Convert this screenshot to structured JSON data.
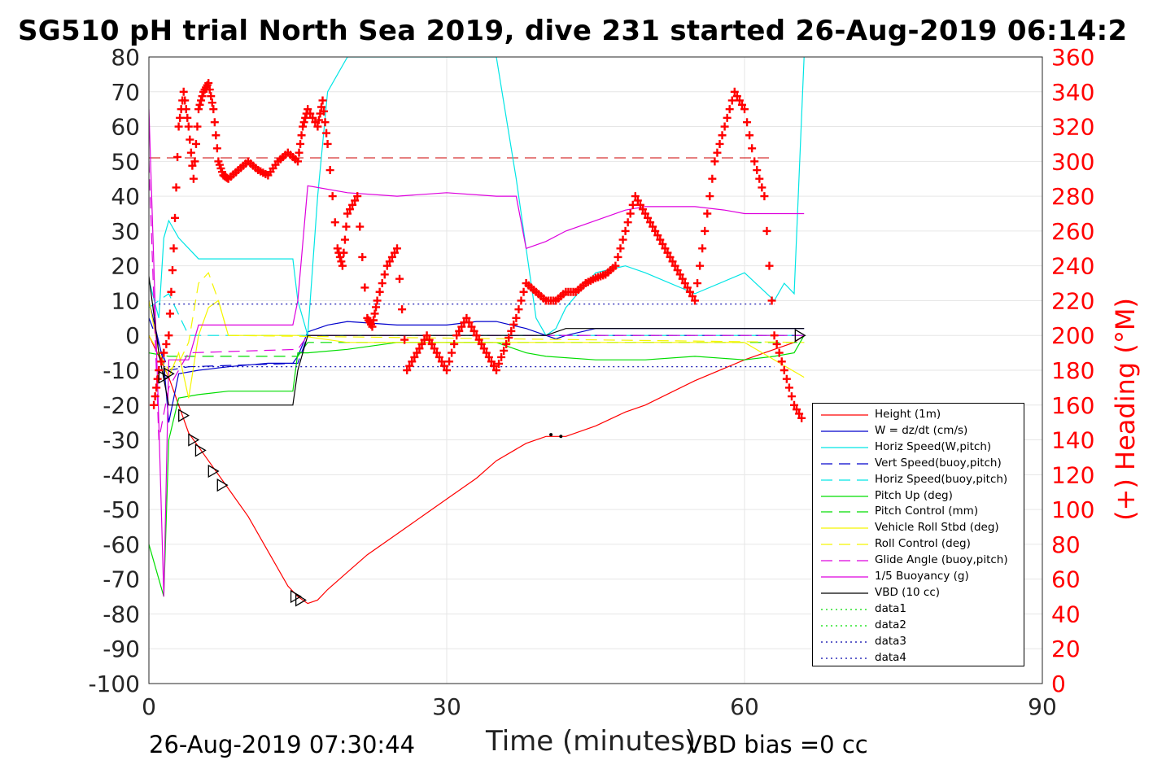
{
  "title": "SG510 pH trial North Sea 2019, dive 231 started 26-Aug-2019 06:14:2",
  "footer_left": "26-Aug-2019 07:30:44",
  "footer_right": "VBD bias =0 cc",
  "chart_data": {
    "type": "line",
    "xlabel": "Time (minutes)",
    "ylabel": "",
    "y2label": "(+) Heading (°M)",
    "xlim": [
      0,
      90
    ],
    "ylim": [
      -100,
      80
    ],
    "y2lim": [
      0,
      360
    ],
    "xticks": [
      "0",
      "30",
      "60",
      "90"
    ],
    "yticks": [
      "80",
      "70",
      "60",
      "50",
      "40",
      "30",
      "20",
      "10",
      "0",
      "-10",
      "-20",
      "-30",
      "-40",
      "-50",
      "-60",
      "-70",
      "-80",
      "-90",
      "-100"
    ],
    "y2ticks": [
      "360",
      "340",
      "320",
      "300",
      "280",
      "260",
      "240",
      "220",
      "200",
      "180",
      "160",
      "140",
      "120",
      "100",
      "80",
      "60",
      "40",
      "20",
      "0"
    ],
    "grid": true,
    "legend_position": "lower-right",
    "colors": {
      "height": "#ff0000",
      "w": "#0000cc",
      "horiz": "#00e5e5",
      "pitch": "#00dd00",
      "roll": "#f5f500",
      "buoy": "#dd00dd",
      "vbd": "#000000",
      "heading": "#ff0000",
      "axis_right": "#ff0000"
    },
    "series": [
      {
        "name": "Height (1m)",
        "color": "#ff0000",
        "style": "solid",
        "x": [
          0,
          2,
          4,
          6,
          8,
          10,
          12,
          14,
          15,
          16,
          17,
          18,
          20,
          22,
          25,
          28,
          30,
          33,
          35,
          38,
          40,
          42,
          45,
          48,
          50,
          55,
          60,
          63,
          65,
          66
        ],
        "y": [
          0,
          -12,
          -28,
          -36,
          -44,
          -52,
          -62,
          -72,
          -75,
          -77,
          -76,
          -73,
          -68,
          -63,
          -57,
          -51,
          -47,
          -41,
          -36,
          -31,
          -29,
          -29,
          -26,
          -22,
          -20,
          -13,
          -7,
          -4,
          -2,
          0
        ]
      },
      {
        "name": "W = dz/dt (cm/s)",
        "color": "#0000cc",
        "style": "solid",
        "x": [
          0,
          1.5,
          2,
          3,
          5,
          8,
          12,
          14.5,
          15,
          16,
          18,
          20,
          25,
          30,
          33,
          35,
          38,
          40,
          41,
          42,
          45,
          50,
          55,
          60,
          63,
          65,
          66
        ],
        "y": [
          10,
          -8,
          -25,
          -11,
          -10,
          -9,
          -8,
          -8,
          -6,
          1,
          3,
          4,
          3,
          3,
          4,
          4,
          2,
          0,
          -1,
          0,
          2,
          2,
          2,
          2,
          2,
          2,
          2
        ]
      },
      {
        "name": "Horiz Speed(W,pitch)",
        "color": "#00e5e5",
        "style": "solid",
        "x": [
          0,
          1,
          1.5,
          2,
          3,
          5,
          8,
          12,
          14.5,
          15,
          16,
          17,
          18,
          20,
          25,
          30,
          35,
          37,
          38,
          39,
          40,
          41,
          42,
          45,
          48,
          50,
          55,
          60,
          63,
          64,
          65,
          66
        ],
        "y": [
          16,
          5,
          28,
          33,
          28,
          22,
          22,
          22,
          22,
          10,
          0,
          40,
          70,
          80,
          80,
          80,
          80,
          45,
          25,
          5,
          0,
          2,
          8,
          18,
          20,
          18,
          12,
          18,
          10,
          15,
          12,
          80
        ]
      },
      {
        "name": "Vert Speed(buoy,pitch)",
        "color": "#0000cc",
        "style": "dashed",
        "x": [
          0,
          2,
          4,
          15,
          16,
          66
        ],
        "y": [
          5,
          -10,
          -9,
          -8,
          0,
          0
        ]
      },
      {
        "name": "Horiz Speed(buoy,pitch)",
        "color": "#00e5e5",
        "style": "dashed",
        "x": [
          0,
          2,
          4,
          15,
          16,
          66
        ],
        "y": [
          8,
          12,
          0,
          0,
          0,
          0
        ]
      },
      {
        "name": "Pitch Up (deg)",
        "color": "#00dd00",
        "style": "solid",
        "x": [
          0,
          1,
          1.5,
          2,
          3,
          5,
          8,
          12,
          14.5,
          15,
          16,
          20,
          25,
          30,
          35,
          38,
          40,
          45,
          50,
          55,
          60,
          63,
          65,
          66
        ],
        "y": [
          -60,
          -70,
          -75,
          -30,
          -18,
          -17,
          -16,
          -16,
          -16,
          -5,
          -5,
          -4,
          -2,
          -2,
          -2,
          -5,
          -6,
          -7,
          -7,
          -6,
          -7,
          -6,
          -5,
          0
        ]
      },
      {
        "name": "Pitch Control (mm)",
        "color": "#00dd00",
        "style": "dashed",
        "x": [
          0,
          2,
          4,
          15,
          16,
          66
        ],
        "y": [
          -5,
          -6,
          -6,
          -6,
          -2,
          -2
        ]
      },
      {
        "name": "Vehicle Roll Stbd (deg)",
        "color": "#f5f500",
        "style": "solid",
        "x": [
          0,
          1,
          2,
          3,
          4,
          5,
          6,
          7,
          8,
          15,
          20,
          30,
          40,
          50,
          60,
          66
        ],
        "y": [
          10,
          -5,
          -12,
          -5,
          -18,
          0,
          8,
          10,
          0,
          0,
          -2,
          -2,
          -2,
          -2,
          -2,
          -12
        ]
      },
      {
        "name": "Roll Control (deg)",
        "color": "#f5f500",
        "style": "dashed",
        "x": [
          0,
          2,
          3,
          4,
          5,
          6,
          7,
          8,
          66
        ],
        "y": [
          0,
          -10,
          -8,
          -2,
          15,
          18,
          10,
          0,
          -2
        ]
      },
      {
        "name": "Glide Angle (buoy,pitch)",
        "color": "#dd00dd",
        "style": "dashed",
        "x": [
          0,
          1,
          2,
          4,
          15,
          16,
          66
        ],
        "y": [
          50,
          -30,
          -15,
          -5,
          -4,
          0,
          0
        ]
      },
      {
        "name": "1/5 Buoyancy (g)",
        "color": "#dd00dd",
        "style": "solid",
        "x": [
          0,
          1,
          1.5,
          2,
          4,
          5,
          8,
          14.5,
          15,
          16,
          20,
          25,
          30,
          35,
          37,
          38,
          40,
          42,
          45,
          48,
          50,
          55,
          58,
          60,
          63,
          65,
          66
        ],
        "y": [
          65,
          -25,
          -75,
          -7,
          -7,
          3,
          3,
          3,
          10,
          43,
          41,
          40,
          41,
          40,
          40,
          25,
          27,
          30,
          33,
          36,
          37,
          37,
          36,
          35,
          35,
          35,
          35
        ]
      },
      {
        "name": "VBD (10 cc)",
        "color": "#000000",
        "style": "solid",
        "x": [
          0,
          1,
          2,
          14.5,
          15,
          16,
          40,
          42,
          66
        ],
        "y": [
          17,
          -5,
          -20,
          -20,
          -10,
          0,
          0,
          2,
          2
        ]
      },
      {
        "name": "data1",
        "color": "#00dd00",
        "style": "dotted",
        "x": [],
        "y": []
      },
      {
        "name": "data2",
        "color": "#00dd00",
        "style": "dotted",
        "x": [],
        "y": []
      },
      {
        "name": "data3",
        "color": "#0000aa",
        "style": "dotted",
        "x": [
          1,
          63
        ],
        "y": [
          9,
          9
        ]
      },
      {
        "name": "data4",
        "color": "#0000aa",
        "style": "dotted",
        "x": [
          1,
          63
        ],
        "y": [
          -9,
          -9
        ]
      }
    ],
    "heading": {
      "marker": "+",
      "color": "#ff0000",
      "x": [
        0.5,
        1,
        2,
        2.5,
        3,
        3.5,
        4,
        4.5,
        5,
        5.5,
        6,
        6.5,
        7,
        7.5,
        8,
        9,
        10,
        11,
        12,
        13,
        14,
        15,
        15.5,
        16,
        17,
        17.5,
        18,
        19,
        19.5,
        20,
        21,
        22,
        22.5,
        23,
        24,
        25,
        26,
        27,
        28,
        29,
        30,
        31,
        32,
        33,
        34,
        35,
        36,
        37,
        38,
        39,
        40,
        41,
        42,
        43,
        44,
        45,
        46,
        47,
        48,
        49,
        50,
        51,
        52,
        53,
        54,
        55,
        56,
        57,
        58,
        59,
        60,
        61,
        62,
        63,
        64,
        65,
        66
      ],
      "y": [
        160,
        180,
        200,
        250,
        320,
        340,
        320,
        290,
        330,
        340,
        345,
        330,
        300,
        292,
        290,
        295,
        300,
        295,
        292,
        300,
        305,
        300,
        320,
        330,
        320,
        335,
        310,
        250,
        240,
        270,
        280,
        210,
        205,
        220,
        240,
        250,
        180,
        190,
        200,
        190,
        180,
        200,
        210,
        200,
        190,
        180,
        195,
        210,
        230,
        225,
        220,
        220,
        225,
        225,
        230,
        233,
        235,
        240,
        260,
        280,
        270,
        260,
        250,
        240,
        230,
        220,
        260,
        300,
        320,
        340,
        330,
        300,
        280,
        200,
        180,
        160,
        150
      ]
    },
    "reference_line": {
      "axis": "right",
      "value": 302,
      "color": "#cc0000",
      "style": "dashed",
      "x": [
        0,
        63
      ]
    },
    "height_dots": [
      {
        "x": 40.5,
        "y": -28.5
      },
      {
        "x": 41.5,
        "y": -29
      }
    ],
    "triangle_markers": [
      {
        "x": 1.5,
        "y": -12
      },
      {
        "x": 2,
        "y": -11
      },
      {
        "x": 3.5,
        "y": -23
      },
      {
        "x": 4.5,
        "y": -30
      },
      {
        "x": 5.2,
        "y": -33
      },
      {
        "x": 6.5,
        "y": -39
      },
      {
        "x": 7.4,
        "y": -43
      },
      {
        "x": 14.8,
        "y": -75
      },
      {
        "x": 15.3,
        "y": -76
      },
      {
        "x": 65.6,
        "y": 0
      }
    ]
  }
}
